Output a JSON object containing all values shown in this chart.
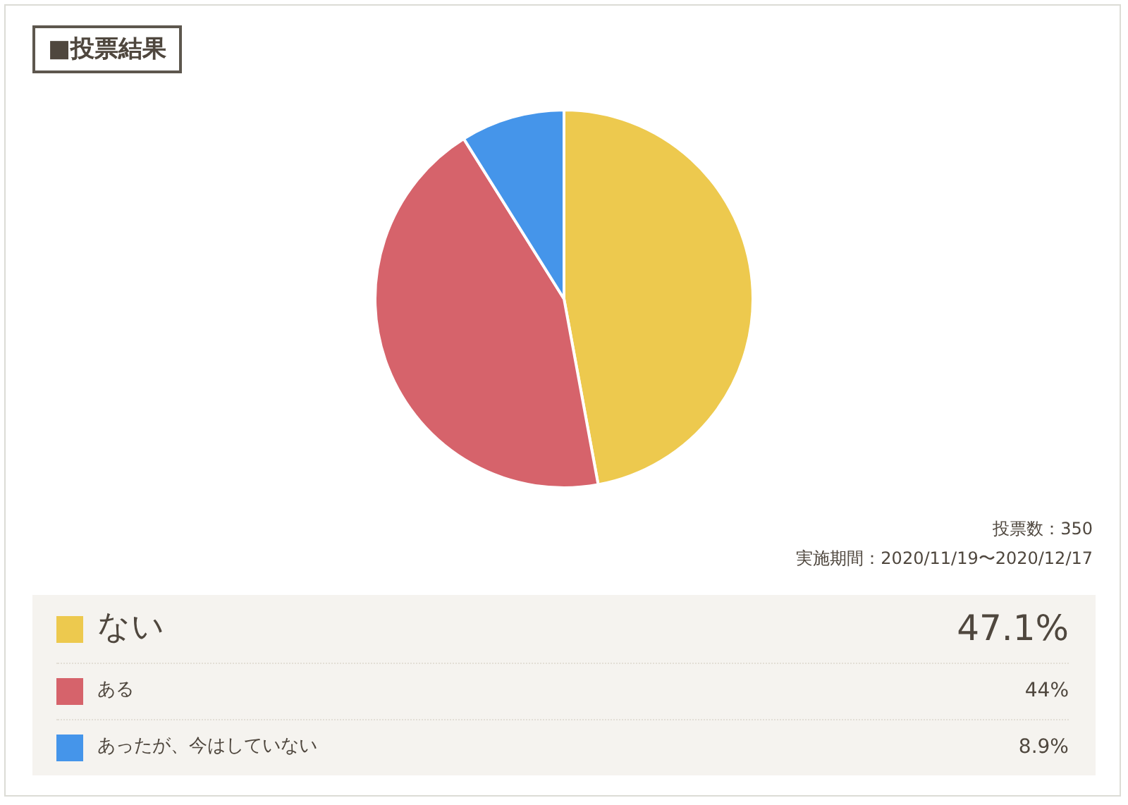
{
  "chart_data": {
    "type": "pie",
    "title": "■投票結果",
    "categories": [
      "ない",
      "ある",
      "あったが、今はしていない"
    ],
    "values": [
      47.1,
      44,
      8.9
    ],
    "value_labels": [
      "47.1%",
      "44%",
      "8.9%"
    ],
    "colors": [
      "#edc94e",
      "#d6636b",
      "#4595ea"
    ],
    "annotations": [
      "投票数：350",
      "実施期間：2020/11/19〜2020/12/17"
    ],
    "legend": "bottom"
  }
}
